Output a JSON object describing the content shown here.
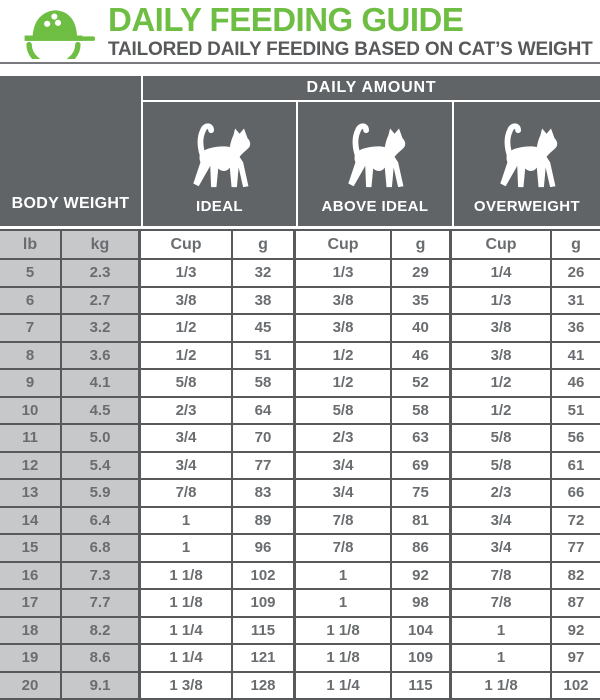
{
  "colors": {
    "brand_green": "#6FBE44",
    "banner_gray": "#616467",
    "cell_gray": "#C6C8CA",
    "border_gray": "#58595B",
    "text_gray": "#6A6D70"
  },
  "header": {
    "icon": "food-bowl-icon",
    "title": "DAILY FEEDING GUIDE",
    "subtitle": "TAILORED DAILY FEEDING BASED ON CAT’S WEIGHT"
  },
  "chart_data": {
    "type": "table",
    "title": "DAILY FEEDING GUIDE",
    "subtitle": "TAILORED DAILY FEEDING BASED ON CAT’S WEIGHT",
    "group_header": "DAILY AMOUNT",
    "row_header": "BODY WEIGHT",
    "column_groups": [
      {
        "label": "IDEAL",
        "icon": "cat-icon"
      },
      {
        "label": "ABOVE IDEAL",
        "icon": "cat-icon"
      },
      {
        "label": "OVERWEIGHT",
        "icon": "cat-icon"
      }
    ],
    "columns": [
      "lb",
      "kg",
      "Cup",
      "g",
      "Cup",
      "g",
      "Cup",
      "g"
    ],
    "rows": [
      [
        "5",
        "2.3",
        "1/3",
        "32",
        "1/3",
        "29",
        "1/4",
        "26"
      ],
      [
        "6",
        "2.7",
        "3/8",
        "38",
        "3/8",
        "35",
        "1/3",
        "31"
      ],
      [
        "7",
        "3.2",
        "1/2",
        "45",
        "3/8",
        "40",
        "3/8",
        "36"
      ],
      [
        "8",
        "3.6",
        "1/2",
        "51",
        "1/2",
        "46",
        "3/8",
        "41"
      ],
      [
        "9",
        "4.1",
        "5/8",
        "58",
        "1/2",
        "52",
        "1/2",
        "46"
      ],
      [
        "10",
        "4.5",
        "2/3",
        "64",
        "5/8",
        "58",
        "1/2",
        "51"
      ],
      [
        "11",
        "5.0",
        "3/4",
        "70",
        "2/3",
        "63",
        "5/8",
        "56"
      ],
      [
        "12",
        "5.4",
        "3/4",
        "77",
        "3/4",
        "69",
        "5/8",
        "61"
      ],
      [
        "13",
        "5.9",
        "7/8",
        "83",
        "3/4",
        "75",
        "2/3",
        "66"
      ],
      [
        "14",
        "6.4",
        "1",
        "89",
        "7/8",
        "81",
        "3/4",
        "72"
      ],
      [
        "15",
        "6.8",
        "1",
        "96",
        "7/8",
        "86",
        "3/4",
        "77"
      ],
      [
        "16",
        "7.3",
        "1 1/8",
        "102",
        "1",
        "92",
        "7/8",
        "82"
      ],
      [
        "17",
        "7.7",
        "1 1/8",
        "109",
        "1",
        "98",
        "7/8",
        "87"
      ],
      [
        "18",
        "8.2",
        "1 1/4",
        "115",
        "1 1/8",
        "104",
        "1",
        "92"
      ],
      [
        "19",
        "8.6",
        "1 1/4",
        "121",
        "1 1/8",
        "109",
        "1",
        "97"
      ],
      [
        "20",
        "9.1",
        "1 3/8",
        "128",
        "1 1/4",
        "115",
        "1 1/8",
        "102"
      ]
    ]
  }
}
